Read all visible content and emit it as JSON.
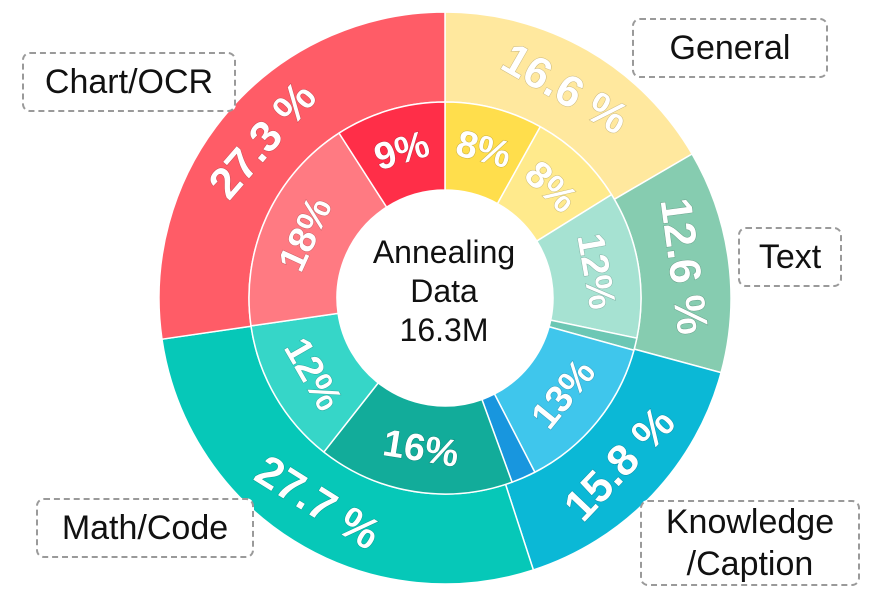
{
  "chart_data": {
    "type": "pie",
    "style": "nested-donut",
    "center": {
      "line1": "Annealing",
      "line2": "Data",
      "line3": "16.3M"
    },
    "outer": [
      {
        "name": "General",
        "value": 16.6,
        "label": "16.6 %",
        "color": "#FFE89E"
      },
      {
        "name": "Text",
        "value": 12.6,
        "label": "12.6 %",
        "color": "#86CCB0"
      },
      {
        "name": "Knowledge/Caption",
        "value": 15.8,
        "label": "15.8 %",
        "color": "#0BB8D6"
      },
      {
        "name": "Math/Code",
        "value": 27.7,
        "label": "27.7 %",
        "color": "#06C8B8"
      },
      {
        "name": "Chart/OCR",
        "value": 27.3,
        "label": "27.3 %",
        "color": "#FF5C67"
      }
    ],
    "inner": [
      {
        "value": 8,
        "label": "8%",
        "color": "#FFDE4C"
      },
      {
        "value": 8,
        "label": "8%",
        "color": "#FFEA8C"
      },
      {
        "value": 12,
        "label": "12%",
        "color": "#A6E2D2"
      },
      {
        "value": 1,
        "label": "",
        "color": "#6CC7B4"
      },
      {
        "value": 13,
        "label": "13%",
        "color": "#3FC6EC"
      },
      {
        "value": 2,
        "label": "",
        "color": "#1896DE"
      },
      {
        "value": 16,
        "label": "16%",
        "color": "#12AC9A"
      },
      {
        "value": 12,
        "label": "12%",
        "color": "#36D6C8"
      },
      {
        "value": 18,
        "label": "18%",
        "color": "#FF7A82"
      },
      {
        "value": 9,
        "label": "9%",
        "color": "#FF2E48"
      }
    ]
  },
  "legend": {
    "general": "General",
    "text": "Text",
    "chart_ocr": "Chart/OCR",
    "math_code": "Math/Code",
    "knowledge_line1": "Knowledge",
    "knowledge_line2": "/Caption"
  }
}
